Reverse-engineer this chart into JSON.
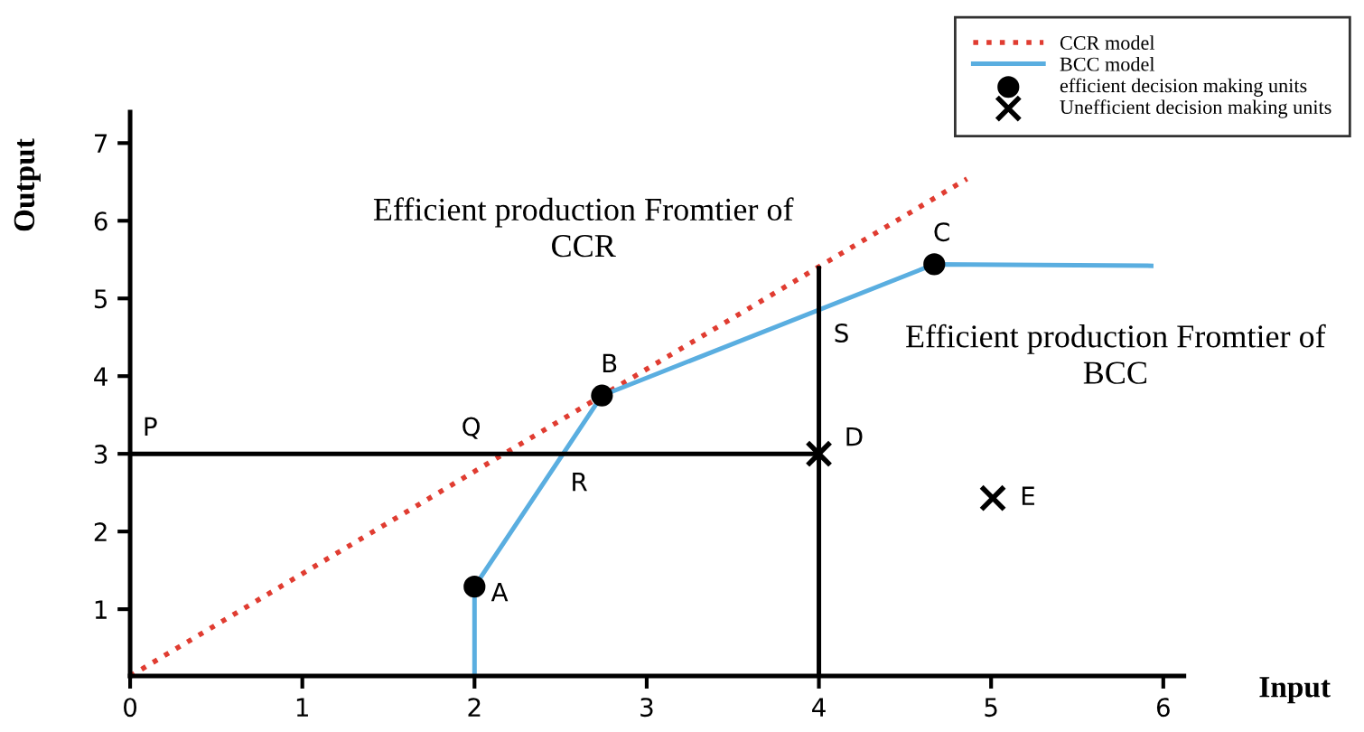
{
  "chart_data": {
    "type": "line",
    "xlabel": "Input",
    "ylabel": "Output",
    "xlim": [
      0,
      6.12
    ],
    "ylim": [
      0.14,
      7.4
    ],
    "xticks": [
      0,
      1,
      2,
      3,
      4,
      5,
      6
    ],
    "yticks": [
      1,
      2,
      3,
      4,
      5,
      6,
      7
    ],
    "grid": false,
    "legend": "top right",
    "series": [
      {
        "name": "CCR model",
        "color": "#e03c31",
        "line_style": "dotted",
        "marker": "none",
        "x": [
          0,
          4.86
        ],
        "values": [
          0.14,
          6.54
        ]
      },
      {
        "name": "BCC model",
        "color": "#5aaee0",
        "line_style": "solid",
        "marker": "none",
        "x": [
          2.0,
          2.0,
          2.74,
          4.67,
          5.93
        ],
        "values": [
          0.14,
          1.29,
          3.75,
          5.44,
          5.42
        ]
      },
      {
        "color": "#000000",
        "line_style": "solid",
        "marker": "none",
        "x": [
          0,
          4
        ],
        "values": [
          3,
          3
        ]
      },
      {
        "color": "#000000",
        "line_style": "solid",
        "marker": "none",
        "x": [
          4,
          4
        ],
        "values": [
          0.14,
          5.39
        ]
      },
      {
        "name": "efficient decision making units",
        "type": "scatter",
        "color": "#000000",
        "marker": "circle",
        "x": [
          2.0,
          2.74,
          4.67
        ],
        "values": [
          1.29,
          3.75,
          5.44
        ]
      },
      {
        "name": "Unefficient decision making units",
        "type": "scatter",
        "color": "#000000",
        "marker": "cross",
        "x": [
          4,
          5.01
        ],
        "values": [
          3,
          2.43
        ]
      }
    ],
    "annotations": [
      {
        "text": "P",
        "x": 0,
        "y": 3
      },
      {
        "text": "Q",
        "x": 2.17,
        "y": 3
      },
      {
        "text": "R",
        "x": 2.52,
        "y": 3
      },
      {
        "text": "S",
        "x": 4,
        "y": 4.85
      },
      {
        "text": "A",
        "x": 2.0,
        "y": 1.29
      },
      {
        "text": "B",
        "x": 2.74,
        "y": 3.75
      },
      {
        "text": "C",
        "x": 4.67,
        "y": 5.44
      },
      {
        "text": "D",
        "x": 4,
        "y": 3
      },
      {
        "text": "E",
        "x": 5.01,
        "y": 2.43
      },
      "Efficient production Fromtier of\nCCR",
      "Efficient production Fromtier of\nBCC"
    ]
  }
}
